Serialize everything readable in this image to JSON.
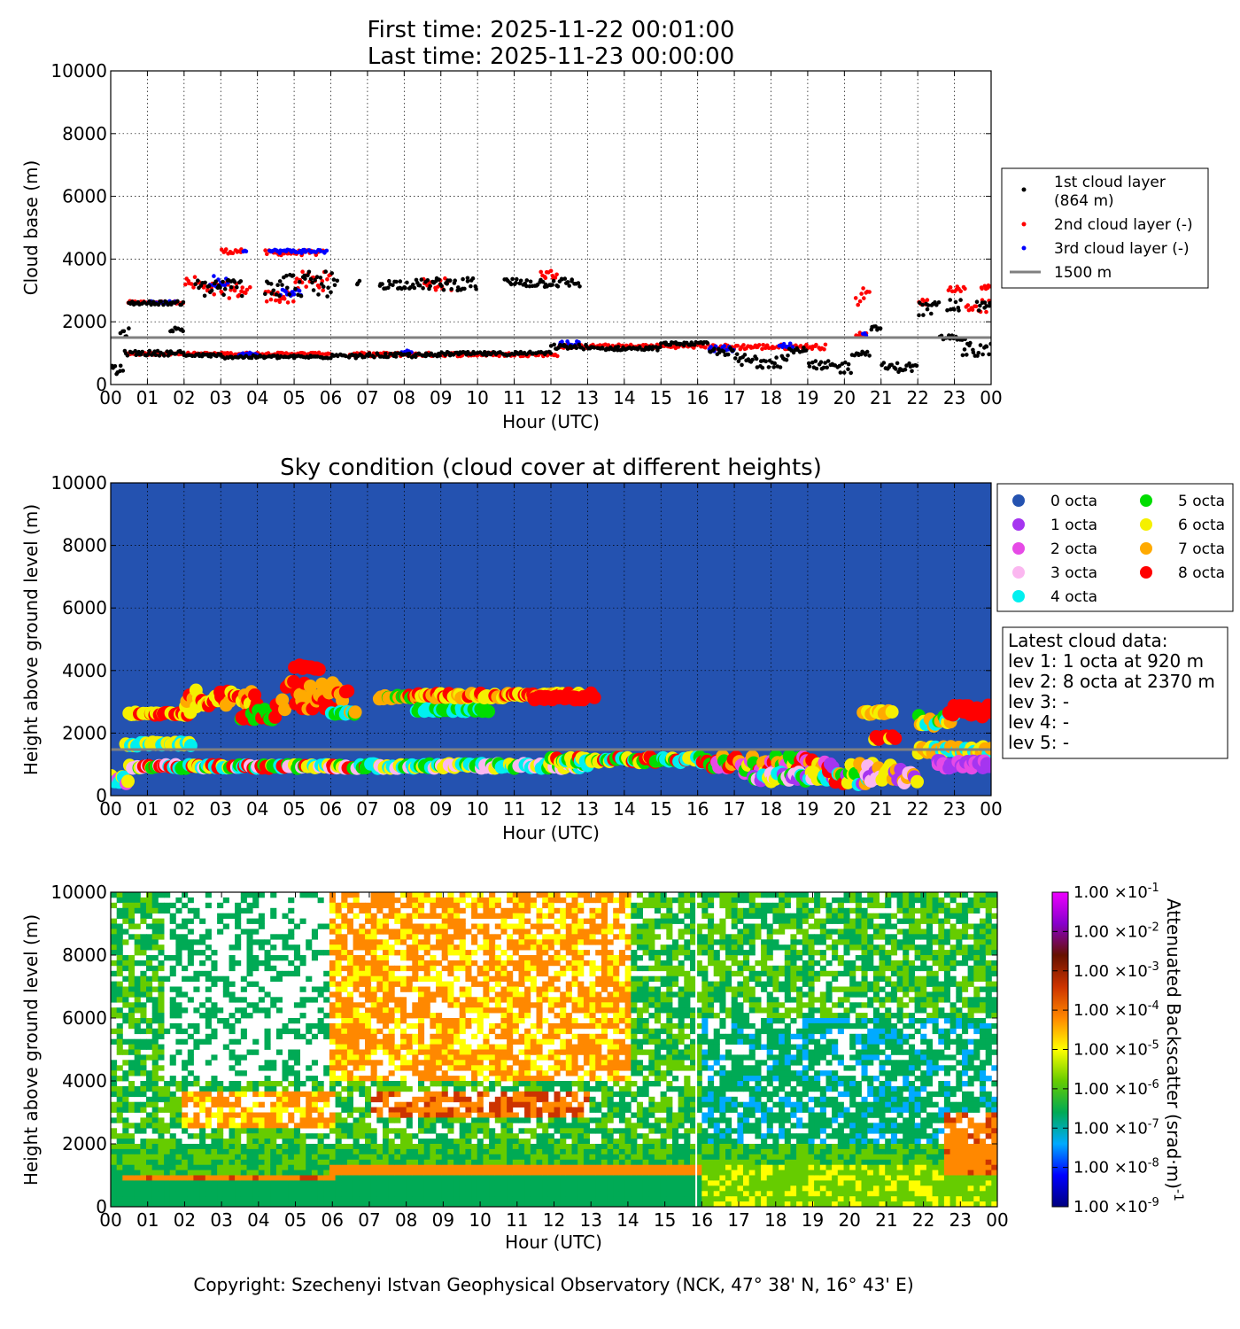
{
  "header": {
    "first_time": "First time: 2025-11-22 00:01:00",
    "last_time": "Last time: 2025-11-23 00:00:00"
  },
  "panel1": {
    "ylabel": "Cloud base (m)",
    "xlabel": "Hour (UTC)",
    "legend": [
      {
        "label": "1st cloud layer",
        "sub": "(864 m)",
        "color": "#000000",
        "kind": "dot"
      },
      {
        "label": "2nd cloud layer (-)",
        "color": "#ff0000",
        "kind": "dot"
      },
      {
        "label": "3rd cloud layer (-)",
        "color": "#0000ff",
        "kind": "dot"
      },
      {
        "label": "1500 m",
        "color": "#808080",
        "kind": "line"
      }
    ]
  },
  "panel2": {
    "title": "Sky condition (cloud cover at different heights)",
    "ylabel": "Height above ground level (m)",
    "xlabel": "Hour (UTC)",
    "background": "#2452b0",
    "octa_legend": [
      {
        "label": "0 octa",
        "color": "#2452b0"
      },
      {
        "label": "1 octa",
        "color": "#a535f0"
      },
      {
        "label": "2 octa",
        "color": "#e64ae6"
      },
      {
        "label": "3 octa",
        "color": "#fbb7f0"
      },
      {
        "label": "4 octa",
        "color": "#00f0f0"
      },
      {
        "label": "5 octa",
        "color": "#00dd00"
      },
      {
        "label": "6 octa",
        "color": "#f5f000"
      },
      {
        "label": "7 octa",
        "color": "#ffaa00"
      },
      {
        "label": "8 octa",
        "color": "#ff0000"
      }
    ],
    "latest": [
      "Latest cloud data:",
      "lev 1: 1 octa at 920 m",
      "lev 2: 8 octa at 2370 m",
      "lev 3: -",
      "lev 4: -",
      "lev 5: -"
    ]
  },
  "panel3": {
    "ylabel": "Height above ground level (m)",
    "xlabel": "Hour (UTC)",
    "colorbar_label": "Attenuated Backscatter (srad·m)",
    "colorbar_label_exp": "-1",
    "colorbar_ticks": [
      {
        "mant": "1.00",
        "exp": "-1"
      },
      {
        "mant": "1.00",
        "exp": "-2"
      },
      {
        "mant": "1.00",
        "exp": "-3"
      },
      {
        "mant": "1.00",
        "exp": "-4"
      },
      {
        "mant": "1.00",
        "exp": "-5"
      },
      {
        "mant": "1.00",
        "exp": "-6"
      },
      {
        "mant": "1.00",
        "exp": "-7"
      },
      {
        "mant": "1.00",
        "exp": "-8"
      },
      {
        "mant": "1.00",
        "exp": "-9"
      }
    ],
    "times_sign": "×10"
  },
  "footer": {
    "copyright": "Copyright: Szechenyi Istvan Geophysical Observatory (NCK, 47° 38' N, 16° 43' E)"
  },
  "chart_data": [
    {
      "type": "scatter",
      "name_ref": "cloud-base",
      "xlim": [
        0,
        24
      ],
      "ylim": [
        0,
        10000
      ],
      "x_ticks": [
        "00",
        "01",
        "02",
        "03",
        "04",
        "05",
        "06",
        "07",
        "08",
        "09",
        "10",
        "11",
        "12",
        "13",
        "14",
        "15",
        "16",
        "17",
        "18",
        "19",
        "20",
        "21",
        "22",
        "23",
        "00"
      ],
      "y_ticks": [
        0,
        2000,
        4000,
        6000,
        8000,
        10000
      ],
      "grid": true,
      "legend_position": "right",
      "reference_line": 1500,
      "series": [
        {
          "name": "1st cloud layer",
          "color": "#000000",
          "segments": [
            [
              0.0,
              0.35,
              450,
              150
            ],
            [
              0.25,
              0.5,
              1650,
              150
            ],
            [
              0.35,
              2.0,
              1000,
              80
            ],
            [
              0.45,
              2.0,
              2600,
              60
            ],
            [
              1.6,
              2.0,
              1750,
              80
            ],
            [
              2.0,
              3.0,
              930,
              50
            ],
            [
              2.3,
              3.6,
              3100,
              300
            ],
            [
              3.0,
              6.0,
              880,
              50
            ],
            [
              4.2,
              6.2,
              3200,
              400
            ],
            [
              6.0,
              7.0,
              900,
              60
            ],
            [
              6.7,
              6.8,
              3250,
              60
            ],
            [
              7.0,
              9.0,
              930,
              70
            ],
            [
              7.3,
              8.6,
              3200,
              150
            ],
            [
              8.6,
              10.0,
              3200,
              200
            ],
            [
              9.0,
              11.0,
              980,
              60
            ],
            [
              10.7,
              12.8,
              3250,
              150
            ],
            [
              11.0,
              12.0,
              1000,
              50
            ],
            [
              12.0,
              13.0,
              1200,
              80
            ],
            [
              13.0,
              15.0,
              1150,
              60
            ],
            [
              15.0,
              16.3,
              1300,
              50
            ],
            [
              16.3,
              17.0,
              1050,
              120
            ],
            [
              17.0,
              17.8,
              750,
              250
            ],
            [
              17.8,
              18.5,
              800,
              250
            ],
            [
              18.5,
              19.0,
              1100,
              80
            ],
            [
              19.0,
              20.2,
              550,
              200
            ],
            [
              20.2,
              20.7,
              1000,
              80
            ],
            [
              20.7,
              21.0,
              1800,
              60
            ],
            [
              21.0,
              22.0,
              550,
              150
            ],
            [
              22.0,
              22.6,
              2400,
              250
            ],
            [
              22.6,
              23.3,
              1500,
              80
            ],
            [
              22.8,
              23.2,
              2500,
              200
            ],
            [
              23.2,
              24.0,
              1100,
              250
            ],
            [
              23.6,
              24.0,
              2500,
              150
            ]
          ]
        },
        {
          "name": "2nd cloud layer (-)",
          "color": "#ff0000",
          "segments": [
            [
              0.45,
              2.0,
              2620,
              40
            ],
            [
              2.0,
              2.5,
              3200,
              250
            ],
            [
              2.5,
              3.8,
              3000,
              250
            ],
            [
              3.0,
              3.6,
              4250,
              80
            ],
            [
              4.2,
              5.8,
              4200,
              80
            ],
            [
              4.2,
              5.0,
              2800,
              200
            ],
            [
              5.0,
              6.0,
              3300,
              300
            ],
            [
              0.4,
              6.0,
              980,
              40
            ],
            [
              6.5,
              12.2,
              960,
              60
            ],
            [
              8.5,
              9.3,
              3200,
              200
            ],
            [
              11.7,
              12.2,
              3500,
              150
            ],
            [
              12.2,
              16.3,
              1220,
              60
            ],
            [
              16.3,
              19.5,
              1200,
              80
            ],
            [
              20.3,
              20.7,
              2800,
              300
            ],
            [
              20.3,
              20.6,
              1600,
              60
            ],
            [
              22.0,
              22.3,
              2650,
              100
            ],
            [
              22.8,
              23.3,
              3050,
              80
            ],
            [
              23.3,
              24.0,
              2500,
              200
            ],
            [
              23.7,
              24.0,
              3100,
              60
            ]
          ]
        },
        {
          "name": "3rd cloud layer (-)",
          "color": "#0000ff",
          "segments": [
            [
              1.0,
              1.8,
              2620,
              40
            ],
            [
              2.7,
              3.2,
              3300,
              200
            ],
            [
              3.6,
              3.7,
              4300,
              60
            ],
            [
              4.3,
              5.9,
              4250,
              60
            ],
            [
              4.6,
              5.2,
              2900,
              150
            ],
            [
              3.5,
              4.0,
              980,
              40
            ],
            [
              7.9,
              8.2,
              1050,
              60
            ],
            [
              12.2,
              12.8,
              1300,
              100
            ],
            [
              16.3,
              17.0,
              1150,
              100
            ],
            [
              18.2,
              18.6,
              1250,
              60
            ],
            [
              20.5,
              20.6,
              1600,
              40
            ]
          ]
        }
      ]
    },
    {
      "type": "scatter",
      "name_ref": "sky-condition",
      "xlim": [
        0,
        24
      ],
      "ylim": [
        0,
        10000
      ],
      "x_ticks": [
        "00",
        "01",
        "02",
        "03",
        "04",
        "05",
        "06",
        "07",
        "08",
        "09",
        "10",
        "11",
        "12",
        "13",
        "14",
        "15",
        "16",
        "17",
        "18",
        "19",
        "20",
        "21",
        "22",
        "23",
        "00"
      ],
      "y_ticks": [
        0,
        2000,
        4000,
        6000,
        8000,
        10000
      ],
      "grid": true,
      "reference_line": 1500,
      "bands": [
        {
          "x": [
            0.0,
            0.5
          ],
          "y": 500,
          "spread": 150,
          "octas": [
            4,
            6,
            2
          ]
        },
        {
          "x": [
            0.4,
            2.2
          ],
          "y": 1650,
          "spread": 60,
          "octas": [
            4,
            6
          ]
        },
        {
          "x": [
            0.5,
            2.2
          ],
          "y": 2620,
          "spread": 50,
          "octas": [
            8,
            6
          ]
        },
        {
          "x": [
            0.5,
            7.0
          ],
          "y": 930,
          "spread": 60,
          "octas": [
            4,
            5,
            3,
            6,
            8
          ]
        },
        {
          "x": [
            2.0,
            4.0
          ],
          "y": 3100,
          "spread": 300,
          "octas": [
            8,
            7,
            6
          ]
        },
        {
          "x": [
            3.5,
            4.5
          ],
          "y": 2600,
          "spread": 200,
          "octas": [
            8,
            5
          ]
        },
        {
          "x": [
            4.5,
            6.5
          ],
          "y": 3200,
          "spread": 450,
          "octas": [
            8,
            7
          ]
        },
        {
          "x": [
            5.0,
            5.7
          ],
          "y": 4100,
          "spread": 80,
          "octas": [
            8
          ]
        },
        {
          "x": [
            6.0,
            6.7
          ],
          "y": 2650,
          "spread": 50,
          "octas": [
            5,
            7,
            4
          ]
        },
        {
          "x": [
            7.0,
            13.0
          ],
          "y": 950,
          "spread": 80,
          "octas": [
            4,
            3,
            5,
            6
          ]
        },
        {
          "x": [
            7.3,
            8.5
          ],
          "y": 3150,
          "spread": 60,
          "octas": [
            5,
            7,
            8
          ]
        },
        {
          "x": [
            8.3,
            10.3
          ],
          "y": 2750,
          "spread": 60,
          "octas": [
            4,
            5
          ]
        },
        {
          "x": [
            8.3,
            13.2
          ],
          "y": 3200,
          "spread": 80,
          "octas": [
            7,
            8,
            6
          ]
        },
        {
          "x": [
            11.5,
            13.0
          ],
          "y": 3120,
          "spread": 60,
          "octas": [
            8
          ]
        },
        {
          "x": [
            12.0,
            16.3
          ],
          "y": 1150,
          "spread": 100,
          "octas": [
            8,
            4,
            6,
            5
          ]
        },
        {
          "x": [
            16.3,
            19.5
          ],
          "y": 1000,
          "spread": 300,
          "octas": [
            8,
            7,
            6,
            5,
            2
          ]
        },
        {
          "x": [
            17.5,
            20.0
          ],
          "y": 600,
          "spread": 150,
          "octas": [
            3,
            4,
            5,
            6,
            1
          ]
        },
        {
          "x": [
            19.5,
            20.8
          ],
          "y": 700,
          "spread": 350,
          "octas": [
            8,
            7,
            6,
            5,
            4,
            1
          ]
        },
        {
          "x": [
            20.5,
            21.3
          ],
          "y": 2650,
          "spread": 60,
          "octas": [
            7,
            6
          ]
        },
        {
          "x": [
            20.8,
            21.4
          ],
          "y": 1850,
          "spread": 60,
          "octas": [
            8,
            6
          ]
        },
        {
          "x": [
            20.5,
            22.0
          ],
          "y": 700,
          "spread": 300,
          "octas": [
            7,
            6,
            1,
            3
          ]
        },
        {
          "x": [
            22.0,
            23.0
          ],
          "y": 2400,
          "spread": 200,
          "octas": [
            7,
            6,
            5,
            4
          ]
        },
        {
          "x": [
            22.8,
            24.0
          ],
          "y": 2700,
          "spread": 200,
          "octas": [
            8
          ]
        },
        {
          "x": [
            22.0,
            24.0
          ],
          "y": 1450,
          "spread": 120,
          "octas": [
            6,
            4,
            7
          ]
        },
        {
          "x": [
            22.5,
            24.0
          ],
          "y": 1000,
          "spread": 120,
          "octas": [
            1,
            2
          ]
        }
      ]
    },
    {
      "type": "heatmap",
      "name_ref": "backscatter",
      "xlim": [
        0,
        24
      ],
      "ylim": [
        0,
        10000
      ],
      "x_ticks": [
        "00",
        "01",
        "02",
        "03",
        "04",
        "05",
        "06",
        "07",
        "08",
        "09",
        "10",
        "11",
        "12",
        "13",
        "14",
        "15",
        "16",
        "17",
        "18",
        "19",
        "20",
        "21",
        "22",
        "23",
        "00"
      ],
      "y_ticks": [
        0,
        2000,
        4000,
        6000,
        8000,
        10000
      ],
      "color_scale": "log",
      "clim": [
        1e-09,
        0.1
      ],
      "colorbar_colors": [
        "#00007f",
        "#0000ff",
        "#00aaff",
        "#00aa55",
        "#66cc00",
        "#ffff00",
        "#ff8800",
        "#cc3300",
        "#661100",
        "#8800cc",
        "#ee00ff"
      ],
      "features": [
        {
          "x": [
            0.0,
            16.0
          ],
          "y": [
            0,
            1000
          ],
          "log10": -6.5
        },
        {
          "x": [
            16.0,
            24.0
          ],
          "y": [
            0,
            1400
          ],
          "log10": -5.5
        },
        {
          "x": [
            0.4,
            6.0
          ],
          "y": [
            900,
            1050
          ],
          "log10": -4.0
        },
        {
          "x": [
            6.0,
            16.0
          ],
          "y": [
            1000,
            1400
          ],
          "log10": -4.2
        },
        {
          "x": [
            2.0,
            6.0
          ],
          "y": [
            2500,
            3700
          ],
          "log10": -4.5
        },
        {
          "x": [
            7.0,
            13.0
          ],
          "y": [
            2800,
            3700
          ],
          "log10": -3.8
        },
        {
          "x": [
            6.0,
            14.0
          ],
          "y": [
            4000,
            10000
          ],
          "log10": -4.5
        },
        {
          "x": [
            22.5,
            24.0
          ],
          "y": [
            1000,
            3000
          ],
          "log10": -4.0
        }
      ]
    }
  ]
}
